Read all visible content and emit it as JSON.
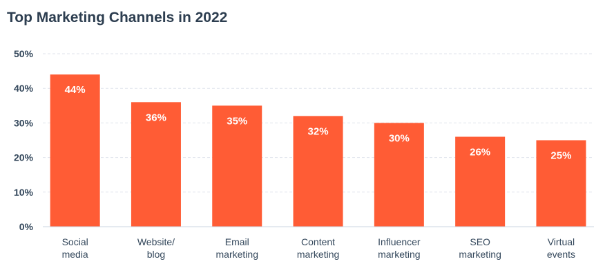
{
  "chart_data": {
    "type": "bar",
    "title": "Top Marketing Channels in 2022",
    "categories": [
      [
        "Social",
        "media"
      ],
      [
        "Website/",
        "blog"
      ],
      [
        "Email",
        "marketing"
      ],
      [
        "Content",
        "marketing"
      ],
      [
        "Influencer",
        "marketing"
      ],
      [
        "SEO",
        "marketing"
      ],
      [
        "Virtual",
        "events"
      ]
    ],
    "values": [
      44,
      36,
      35,
      32,
      30,
      26,
      25
    ],
    "data_labels": [
      "44%",
      "36%",
      "35%",
      "32%",
      "30%",
      "26%",
      "25%"
    ],
    "y_ticks": [
      "0%",
      "10%",
      "20%",
      "30%",
      "40%",
      "50%"
    ],
    "ylim": [
      0,
      50
    ],
    "grid": true,
    "bar_color": "#ff5c35",
    "text_color": "#33475b"
  }
}
